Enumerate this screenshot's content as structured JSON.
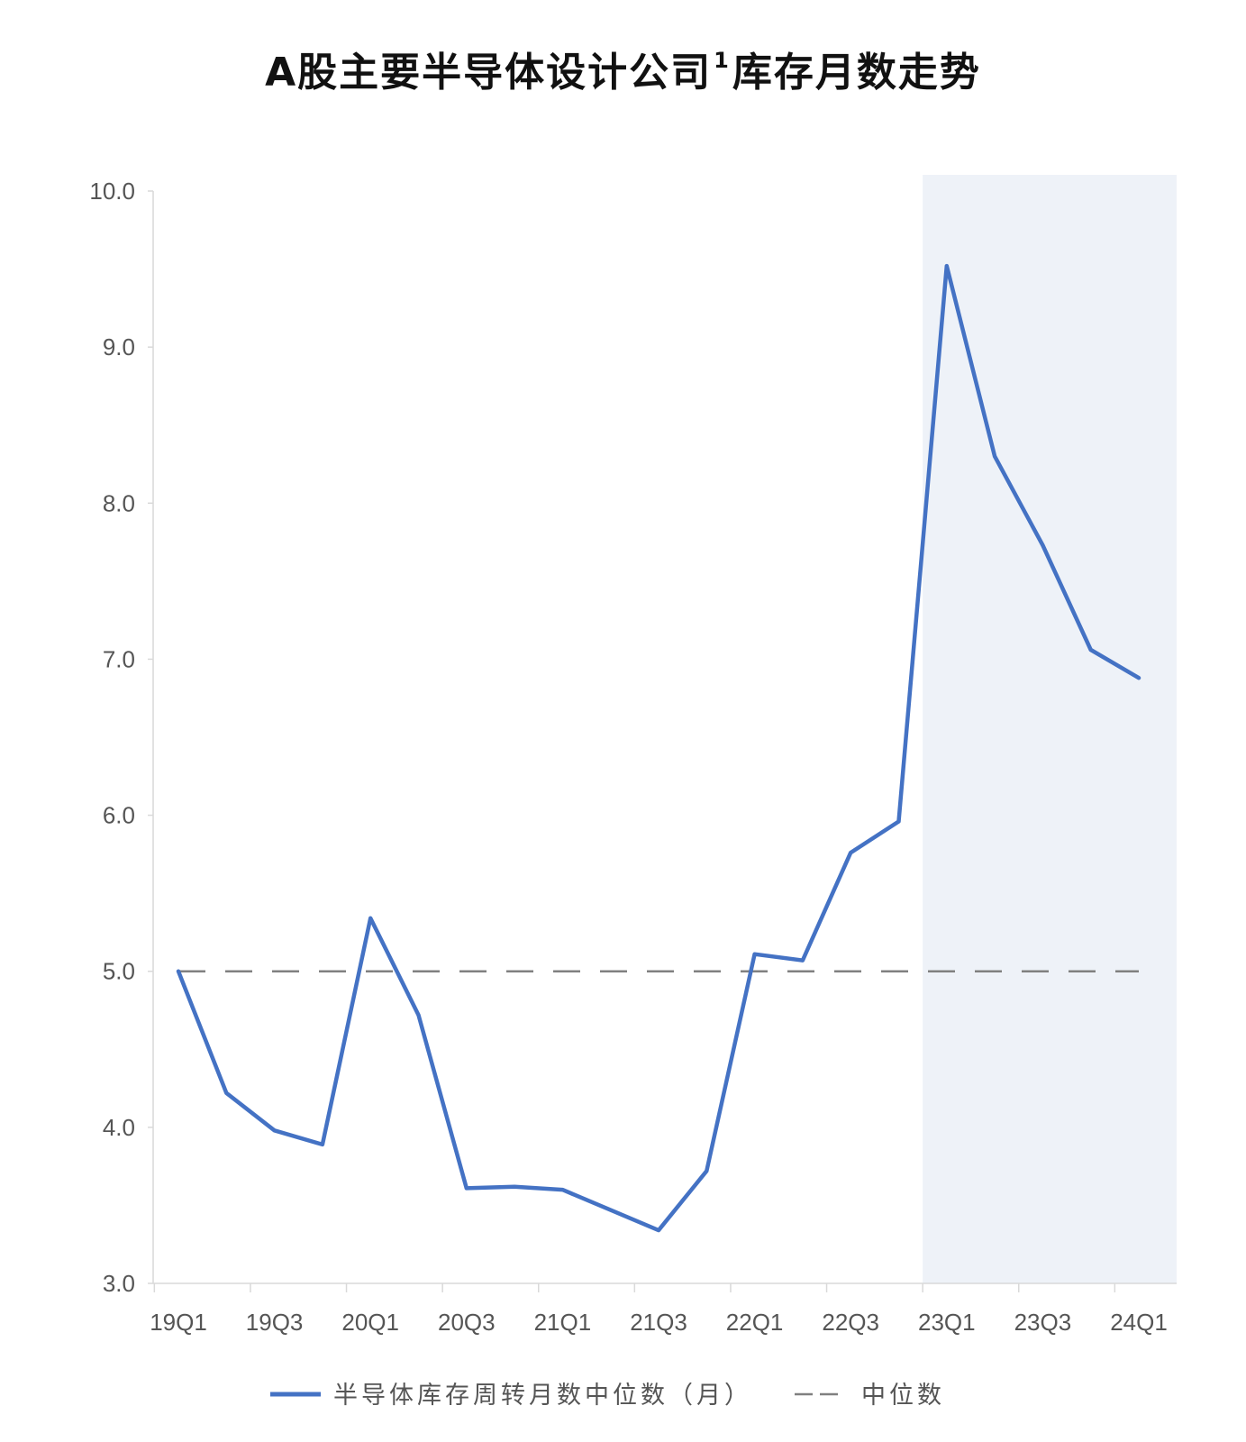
{
  "chart_data": {
    "type": "line",
    "title": "A股主要半导体设计公司",
    "title_footnote": "1",
    "title_suffix": "库存月数走势",
    "xlabel": "",
    "ylabel": "",
    "x": [
      "19Q1",
      "19Q2",
      "19Q3",
      "19Q4",
      "20Q1",
      "20Q2",
      "20Q3",
      "20Q4",
      "21Q1",
      "21Q2",
      "21Q3",
      "21Q4",
      "22Q1",
      "22Q2",
      "22Q3",
      "22Q4",
      "23Q1",
      "23Q2",
      "23Q3",
      "23Q4",
      "24Q1"
    ],
    "x_tick_labels": [
      "19Q1",
      "19Q3",
      "20Q1",
      "20Q3",
      "21Q1",
      "21Q3",
      "22Q1",
      "22Q3",
      "23Q1",
      "23Q3",
      "24Q1"
    ],
    "ylim": [
      3.0,
      10.0
    ],
    "y_ticks": [
      "3.0",
      "4.0",
      "5.0",
      "6.0",
      "7.0",
      "8.0",
      "9.0",
      "10.0"
    ],
    "grid": false,
    "legend_position": "bottom-center",
    "shaded_region": {
      "from": "23Q1",
      "to": "24Q1",
      "color": "#eef2f8"
    },
    "series": [
      {
        "name": "半导体库存周转月数中位数（月）",
        "style": "solid",
        "color": "#4472c4",
        "values": [
          5.0,
          4.22,
          3.98,
          3.89,
          5.34,
          4.72,
          3.61,
          3.62,
          3.6,
          3.47,
          3.34,
          3.72,
          5.11,
          5.07,
          5.76,
          5.96,
          9.52,
          8.3,
          7.73,
          7.06,
          6.88
        ]
      },
      {
        "name": "中位数",
        "style": "dashed",
        "color": "#808080",
        "values": [
          5.0,
          5.0,
          5.0,
          5.0,
          5.0,
          5.0,
          5.0,
          5.0,
          5.0,
          5.0,
          5.0,
          5.0,
          5.0,
          5.0,
          5.0,
          5.0,
          5.0,
          5.0,
          5.0,
          5.0,
          5.0
        ]
      }
    ]
  }
}
